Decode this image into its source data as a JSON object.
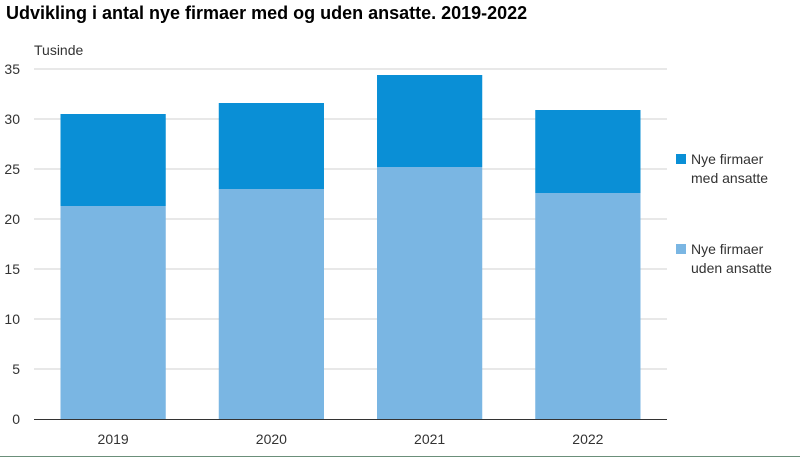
{
  "chart_data": {
    "type": "bar",
    "stacked": true,
    "title": "Udvikling i antal nye firmaer med og uden ansatte. 2019-2022",
    "ylabel": "Tusinde",
    "xlabel": "",
    "ylim": [
      0,
      35
    ],
    "yticks": [
      0,
      5,
      10,
      15,
      20,
      25,
      30,
      35
    ],
    "grid": true,
    "legend_position": "right",
    "categories": [
      "2019",
      "2020",
      "2021",
      "2022"
    ],
    "series": [
      {
        "name": "Nye firmaer uden ansatte",
        "color": "#7ab6e3",
        "values": [
          21.3,
          23.0,
          25.2,
          22.6
        ]
      },
      {
        "name": "Nye firmaer med ansatte",
        "color": "#0a8fd6",
        "values": [
          9.2,
          8.6,
          9.2,
          8.3
        ]
      }
    ],
    "legend": [
      {
        "line1": "Nye firmaer",
        "line2": "med ansatte",
        "color": "#0a8fd6"
      },
      {
        "line1": "Nye firmaer",
        "line2": "uden ansatte",
        "color": "#7ab6e3"
      }
    ]
  }
}
